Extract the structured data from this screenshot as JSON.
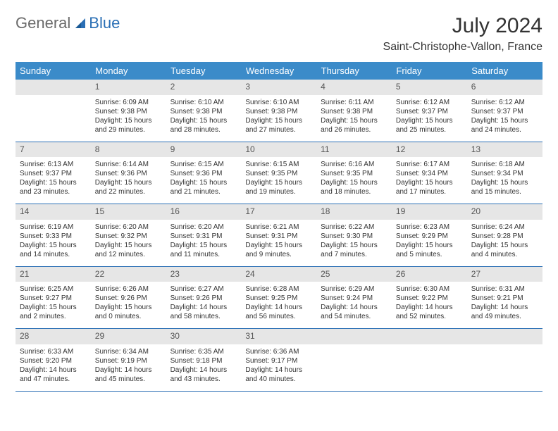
{
  "logo": {
    "general": "General",
    "blue": "Blue"
  },
  "title": "July 2024",
  "location": "Saint-Christophe-Vallon, France",
  "colors": {
    "header_bg": "#3b8bc9",
    "header_text": "#ffffff",
    "daynum_bg": "#e6e6e6",
    "border": "#2a6fb5",
    "logo_gray": "#6b6b6b",
    "logo_blue": "#2a6fb5",
    "text": "#333333"
  },
  "day_names": [
    "Sunday",
    "Monday",
    "Tuesday",
    "Wednesday",
    "Thursday",
    "Friday",
    "Saturday"
  ],
  "weeks": [
    [
      {
        "num": "",
        "lines": []
      },
      {
        "num": "1",
        "lines": [
          "Sunrise: 6:09 AM",
          "Sunset: 9:38 PM",
          "Daylight: 15 hours and 29 minutes."
        ]
      },
      {
        "num": "2",
        "lines": [
          "Sunrise: 6:10 AM",
          "Sunset: 9:38 PM",
          "Daylight: 15 hours and 28 minutes."
        ]
      },
      {
        "num": "3",
        "lines": [
          "Sunrise: 6:10 AM",
          "Sunset: 9:38 PM",
          "Daylight: 15 hours and 27 minutes."
        ]
      },
      {
        "num": "4",
        "lines": [
          "Sunrise: 6:11 AM",
          "Sunset: 9:38 PM",
          "Daylight: 15 hours and 26 minutes."
        ]
      },
      {
        "num": "5",
        "lines": [
          "Sunrise: 6:12 AM",
          "Sunset: 9:37 PM",
          "Daylight: 15 hours and 25 minutes."
        ]
      },
      {
        "num": "6",
        "lines": [
          "Sunrise: 6:12 AM",
          "Sunset: 9:37 PM",
          "Daylight: 15 hours and 24 minutes."
        ]
      }
    ],
    [
      {
        "num": "7",
        "lines": [
          "Sunrise: 6:13 AM",
          "Sunset: 9:37 PM",
          "Daylight: 15 hours and 23 minutes."
        ]
      },
      {
        "num": "8",
        "lines": [
          "Sunrise: 6:14 AM",
          "Sunset: 9:36 PM",
          "Daylight: 15 hours and 22 minutes."
        ]
      },
      {
        "num": "9",
        "lines": [
          "Sunrise: 6:15 AM",
          "Sunset: 9:36 PM",
          "Daylight: 15 hours and 21 minutes."
        ]
      },
      {
        "num": "10",
        "lines": [
          "Sunrise: 6:15 AM",
          "Sunset: 9:35 PM",
          "Daylight: 15 hours and 19 minutes."
        ]
      },
      {
        "num": "11",
        "lines": [
          "Sunrise: 6:16 AM",
          "Sunset: 9:35 PM",
          "Daylight: 15 hours and 18 minutes."
        ]
      },
      {
        "num": "12",
        "lines": [
          "Sunrise: 6:17 AM",
          "Sunset: 9:34 PM",
          "Daylight: 15 hours and 17 minutes."
        ]
      },
      {
        "num": "13",
        "lines": [
          "Sunrise: 6:18 AM",
          "Sunset: 9:34 PM",
          "Daylight: 15 hours and 15 minutes."
        ]
      }
    ],
    [
      {
        "num": "14",
        "lines": [
          "Sunrise: 6:19 AM",
          "Sunset: 9:33 PM",
          "Daylight: 15 hours and 14 minutes."
        ]
      },
      {
        "num": "15",
        "lines": [
          "Sunrise: 6:20 AM",
          "Sunset: 9:32 PM",
          "Daylight: 15 hours and 12 minutes."
        ]
      },
      {
        "num": "16",
        "lines": [
          "Sunrise: 6:20 AM",
          "Sunset: 9:31 PM",
          "Daylight: 15 hours and 11 minutes."
        ]
      },
      {
        "num": "17",
        "lines": [
          "Sunrise: 6:21 AM",
          "Sunset: 9:31 PM",
          "Daylight: 15 hours and 9 minutes."
        ]
      },
      {
        "num": "18",
        "lines": [
          "Sunrise: 6:22 AM",
          "Sunset: 9:30 PM",
          "Daylight: 15 hours and 7 minutes."
        ]
      },
      {
        "num": "19",
        "lines": [
          "Sunrise: 6:23 AM",
          "Sunset: 9:29 PM",
          "Daylight: 15 hours and 5 minutes."
        ]
      },
      {
        "num": "20",
        "lines": [
          "Sunrise: 6:24 AM",
          "Sunset: 9:28 PM",
          "Daylight: 15 hours and 4 minutes."
        ]
      }
    ],
    [
      {
        "num": "21",
        "lines": [
          "Sunrise: 6:25 AM",
          "Sunset: 9:27 PM",
          "Daylight: 15 hours and 2 minutes."
        ]
      },
      {
        "num": "22",
        "lines": [
          "Sunrise: 6:26 AM",
          "Sunset: 9:26 PM",
          "Daylight: 15 hours and 0 minutes."
        ]
      },
      {
        "num": "23",
        "lines": [
          "Sunrise: 6:27 AM",
          "Sunset: 9:26 PM",
          "Daylight: 14 hours and 58 minutes."
        ]
      },
      {
        "num": "24",
        "lines": [
          "Sunrise: 6:28 AM",
          "Sunset: 9:25 PM",
          "Daylight: 14 hours and 56 minutes."
        ]
      },
      {
        "num": "25",
        "lines": [
          "Sunrise: 6:29 AM",
          "Sunset: 9:24 PM",
          "Daylight: 14 hours and 54 minutes."
        ]
      },
      {
        "num": "26",
        "lines": [
          "Sunrise: 6:30 AM",
          "Sunset: 9:22 PM",
          "Daylight: 14 hours and 52 minutes."
        ]
      },
      {
        "num": "27",
        "lines": [
          "Sunrise: 6:31 AM",
          "Sunset: 9:21 PM",
          "Daylight: 14 hours and 49 minutes."
        ]
      }
    ],
    [
      {
        "num": "28",
        "lines": [
          "Sunrise: 6:33 AM",
          "Sunset: 9:20 PM",
          "Daylight: 14 hours and 47 minutes."
        ]
      },
      {
        "num": "29",
        "lines": [
          "Sunrise: 6:34 AM",
          "Sunset: 9:19 PM",
          "Daylight: 14 hours and 45 minutes."
        ]
      },
      {
        "num": "30",
        "lines": [
          "Sunrise: 6:35 AM",
          "Sunset: 9:18 PM",
          "Daylight: 14 hours and 43 minutes."
        ]
      },
      {
        "num": "31",
        "lines": [
          "Sunrise: 6:36 AM",
          "Sunset: 9:17 PM",
          "Daylight: 14 hours and 40 minutes."
        ]
      },
      {
        "num": "",
        "lines": []
      },
      {
        "num": "",
        "lines": []
      },
      {
        "num": "",
        "lines": []
      }
    ]
  ]
}
